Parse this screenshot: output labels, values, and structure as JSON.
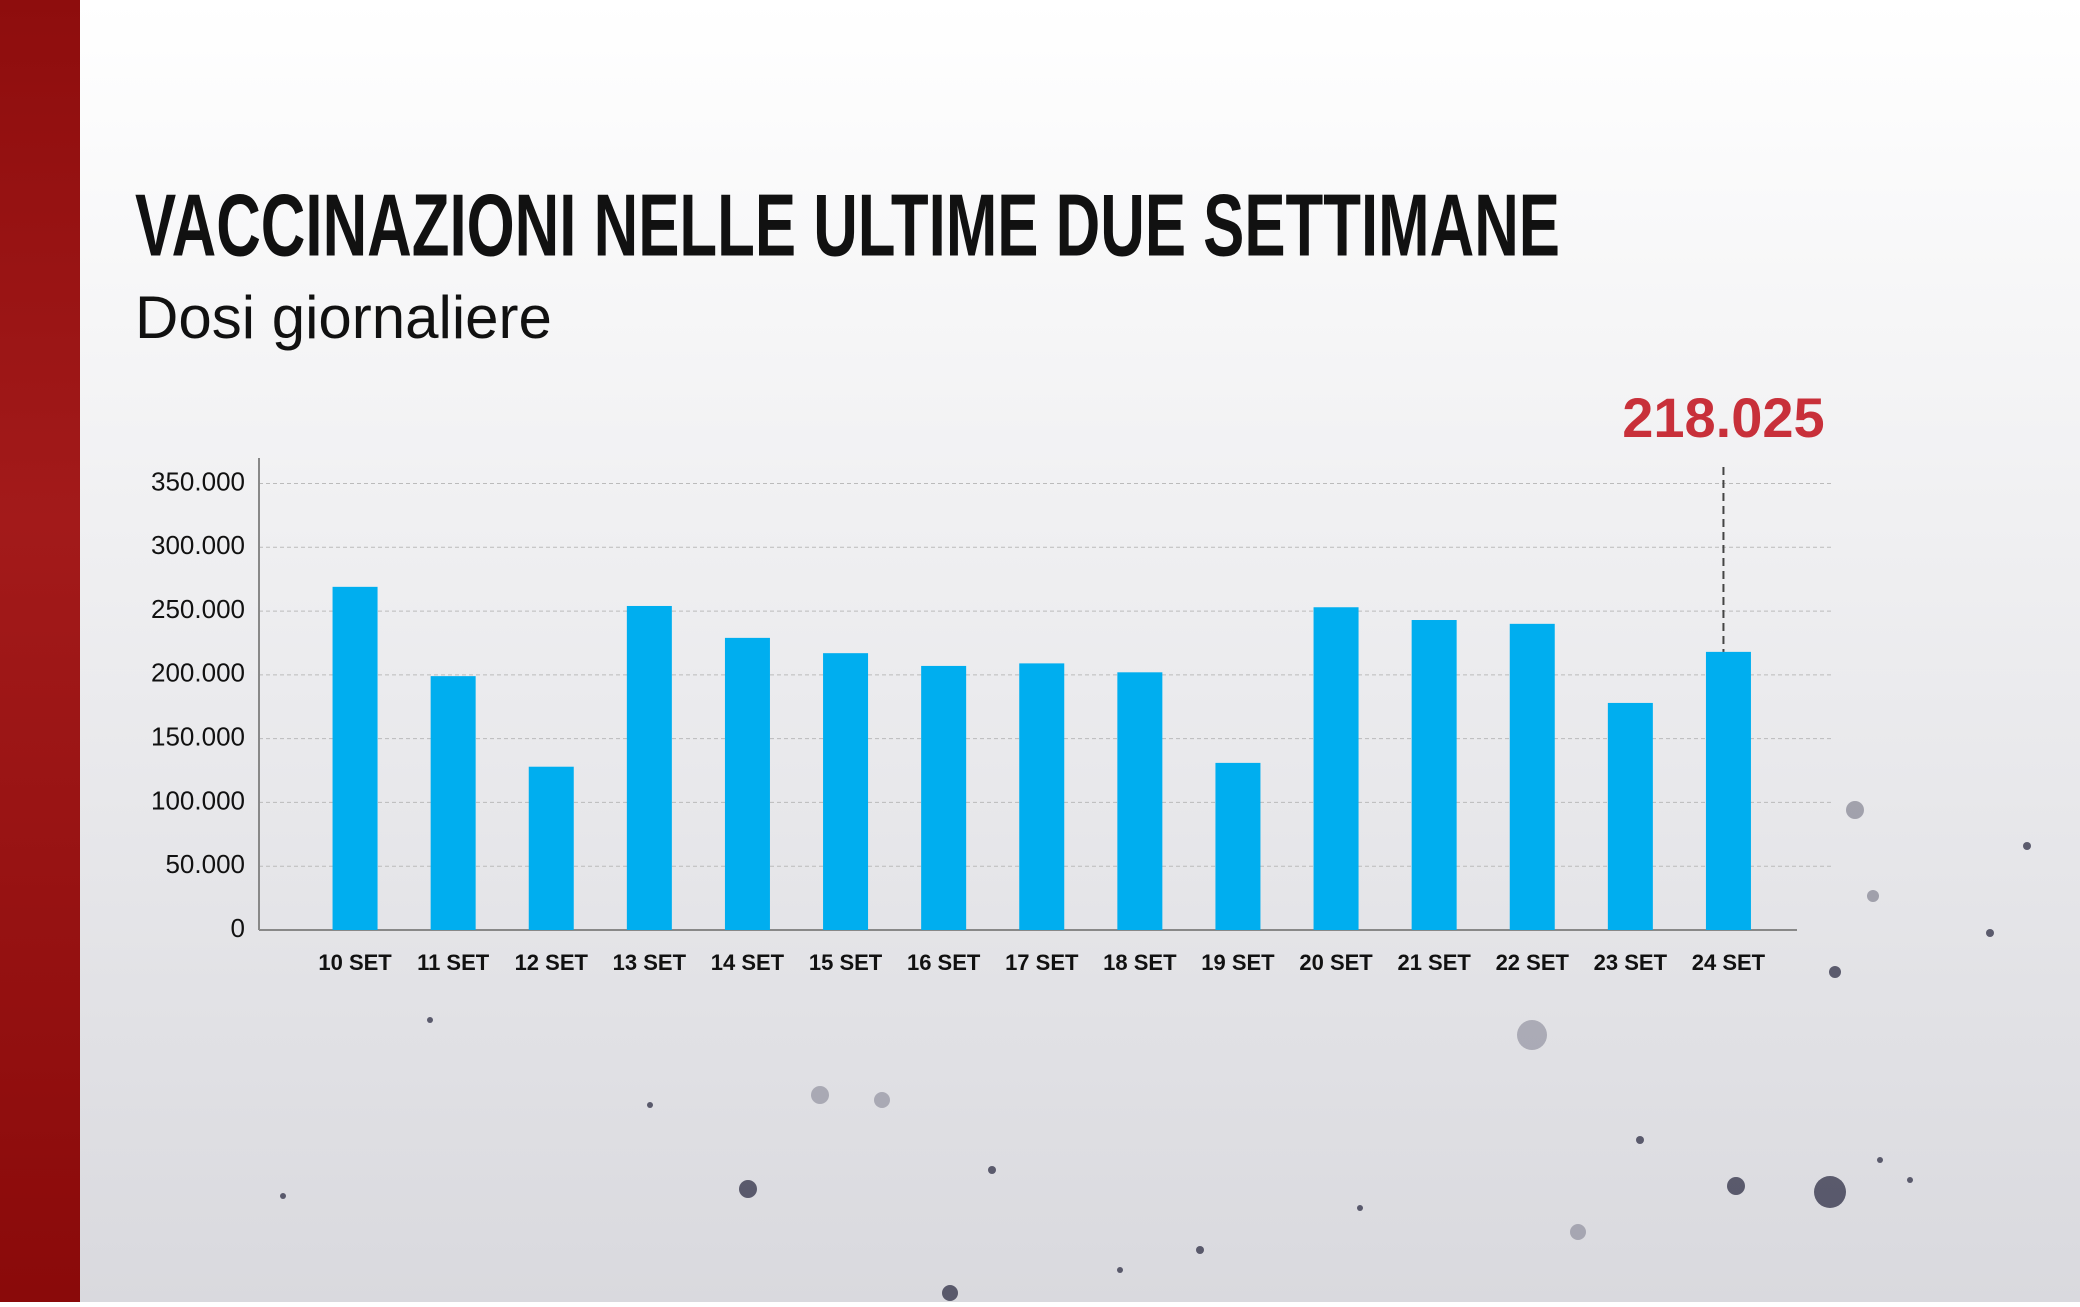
{
  "chart_data": {
    "type": "bar",
    "title": "VACCINAZIONI NELLE ULTIME DUE SETTIMANE",
    "subtitle": "Dosi giornaliere",
    "categories": [
      "10 SET",
      "11 SET",
      "12 SET",
      "13 SET",
      "14 SET",
      "15 SET",
      "16 SET",
      "17 SET",
      "18 SET",
      "19 SET",
      "20 SET",
      "21 SET",
      "22 SET",
      "23 SET",
      "24 SET"
    ],
    "values": [
      269000,
      199000,
      128000,
      254000,
      229000,
      217000,
      207000,
      209000,
      202000,
      131000,
      253000,
      243000,
      240000,
      178000,
      218025
    ],
    "value_labels": [
      null,
      null,
      null,
      null,
      null,
      null,
      null,
      null,
      null,
      null,
      null,
      null,
      null,
      null,
      "218.025"
    ],
    "color": "#00aeef",
    "label_color": "#c8303a",
    "ylim": [
      0,
      370000
    ],
    "yticks": [
      0,
      {
        "value": 50000,
        "label": "50.000"
      },
      {
        "value": 100000,
        "label": "100.000"
      },
      {
        "value": 150000,
        "label": "150.000"
      },
      {
        "value": 200000,
        "label": "200.000"
      },
      {
        "value": 250000,
        "label": "250.000"
      },
      {
        "value": 300000,
        "label": "300.000"
      },
      {
        "value": 350000,
        "label": "350.000"
      }
    ],
    "grid": true
  }
}
